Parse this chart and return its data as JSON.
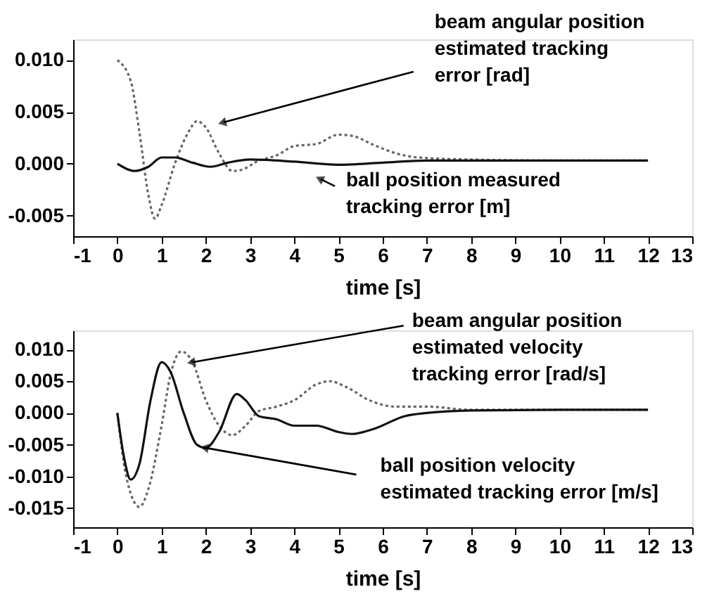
{
  "chart_data": [
    {
      "type": "line",
      "xlabel": "time [s]",
      "xlim": [
        -1,
        13
      ],
      "xticks": [
        -1,
        0,
        1,
        2,
        3,
        4,
        5,
        6,
        7,
        8,
        9,
        10,
        11,
        12,
        13
      ],
      "ylim": [
        -0.007,
        0.012
      ],
      "yticks": [
        {
          "value": -0.005,
          "label": "-0.005"
        },
        {
          "value": 0,
          "label": "0.000"
        },
        {
          "value": 0.005,
          "label": "0.005"
        },
        {
          "value": 0.01,
          "label": "0.010"
        }
      ],
      "grid": false,
      "series": [
        {
          "color": "#666666",
          "line_style": "dotted",
          "x": [
            0,
            0.3,
            0.5,
            0.7,
            0.85,
            1.0,
            1.3,
            1.6,
            1.8,
            2.0,
            2.3,
            2.6,
            2.8,
            3.2,
            3.6,
            4.0,
            4.5,
            5.0,
            5.3,
            5.8,
            6.3,
            6.8,
            8,
            10,
            12
          ],
          "values": [
            0.01,
            0.008,
            0.003,
            -0.003,
            -0.0053,
            -0.004,
            0.0,
            0.003,
            0.0041,
            0.0035,
            0.001,
            -0.0007,
            -0.0006,
            0.0003,
            0.0008,
            0.0017,
            0.0019,
            0.0028,
            0.0027,
            0.0018,
            0.001,
            0.0006,
            0.0004,
            0.0003,
            0.0003
          ]
        },
        {
          "color": "#111111",
          "line_style": "solid",
          "x": [
            0,
            0.4,
            0.7,
            1.0,
            1.3,
            1.7,
            2.1,
            2.5,
            3.0,
            4,
            5,
            6,
            7,
            9,
            12
          ],
          "values": [
            0.0,
            -0.0007,
            -0.0003,
            0.0006,
            0.0006,
            0.0001,
            -0.0003,
            0.0001,
            0.0004,
            0.0002,
            -0.0001,
            0.0001,
            0.0003,
            0.0003,
            0.0003
          ]
        }
      ],
      "annotations": [
        {
          "text": "beam angular position\nestimated tracking\nerror [rad]",
          "x": 2.4,
          "y": 0.004
        },
        {
          "text": "ball position measured\ntracking error [m]",
          "x": 4.6,
          "y": -0.0015
        }
      ]
    },
    {
      "type": "line",
      "xlabel": "time [s]",
      "xlim": [
        -1,
        13
      ],
      "xticks": [
        -1,
        0,
        1,
        2,
        3,
        4,
        5,
        6,
        7,
        8,
        9,
        10,
        11,
        12,
        13
      ],
      "ylim": [
        -0.018,
        0.013
      ],
      "yticks": [
        {
          "value": -0.015,
          "label": "-0.015"
        },
        {
          "value": -0.01,
          "label": "-0.010"
        },
        {
          "value": -0.005,
          "label": "-0.005"
        },
        {
          "value": 0,
          "label": "0.000"
        },
        {
          "value": 0.005,
          "label": "0.005"
        },
        {
          "value": 0.01,
          "label": "0.010"
        }
      ],
      "grid": false,
      "series": [
        {
          "color": "#666666",
          "line_style": "dotted",
          "x": [
            0,
            0.2,
            0.5,
            0.7,
            1.0,
            1.2,
            1.45,
            1.7,
            2.0,
            2.3,
            2.6,
            2.9,
            3.2,
            3.6,
            4.0,
            4.5,
            4.8,
            5.2,
            5.7,
            6.3,
            7,
            8,
            10,
            12
          ],
          "values": [
            0.0,
            -0.01,
            -0.0148,
            -0.012,
            -0.002,
            0.006,
            0.0097,
            0.008,
            0.002,
            -0.002,
            -0.0035,
            -0.002,
            0.0003,
            0.001,
            0.002,
            0.0045,
            0.005,
            0.004,
            0.002,
            0.001,
            0.001,
            0.0005,
            0.0005,
            0.0005
          ]
        },
        {
          "color": "#111111",
          "line_style": "solid",
          "x": [
            0,
            0.15,
            0.3,
            0.5,
            0.75,
            1.0,
            1.2,
            1.5,
            1.8,
            2.0,
            2.3,
            2.7,
            2.9,
            3.2,
            3.6,
            4.0,
            4.5,
            5.0,
            5.3,
            5.8,
            6.5,
            7,
            8,
            10,
            12
          ],
          "values": [
            0.0,
            -0.007,
            -0.0105,
            -0.008,
            0.002,
            0.008,
            0.0065,
            0.0,
            -0.005,
            -0.0055,
            -0.003,
            0.003,
            0.002,
            -0.0005,
            -0.001,
            -0.002,
            -0.002,
            -0.003,
            -0.0033,
            -0.0025,
            -0.0005,
            0.0,
            0.0004,
            0.0005,
            0.0005
          ]
        }
      ],
      "annotations": [
        {
          "text": "beam angular position\nestimated velocity\ntracking error [rad/s]",
          "x": 1.7,
          "y": 0.008
        },
        {
          "text": "ball position velocity\nestimated tracking error [m/s]",
          "x": 2.0,
          "y": -0.0055
        }
      ]
    }
  ]
}
